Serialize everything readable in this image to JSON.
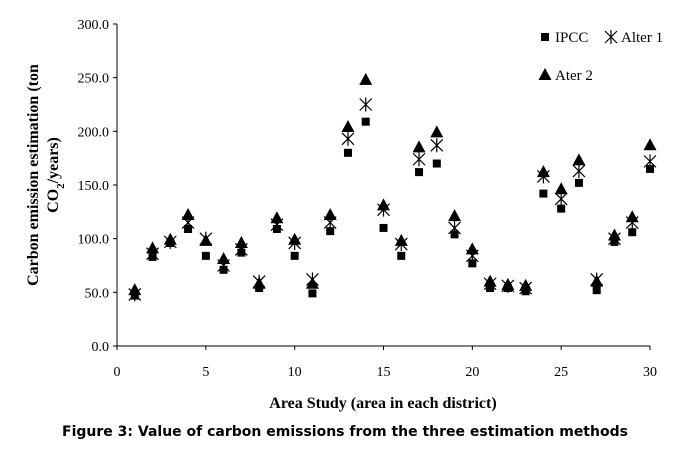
{
  "chart_data": {
    "type": "scatter",
    "title": "",
    "xlabel": "Area Study (area in each district)",
    "ylabel_line1": "Carbon emission estimation (ton",
    "ylabel_line2_prefix": "CO",
    "ylabel_line2_sub": "2",
    "ylabel_line2_suffix": "/years)",
    "xlim": [
      0,
      30
    ],
    "ylim": [
      0,
      300
    ],
    "x_ticks": [
      "0",
      "5",
      "10",
      "15",
      "20",
      "25",
      "30"
    ],
    "y_ticks": [
      "0.0",
      "50.0",
      "100.0",
      "150.0",
      "200.0",
      "250.0",
      "300.0"
    ],
    "grid": false,
    "legend_position": "top-right",
    "x": [
      1,
      2,
      3,
      4,
      5,
      6,
      7,
      8,
      9,
      10,
      11,
      12,
      13,
      14,
      15,
      16,
      17,
      18,
      19,
      20,
      21,
      22,
      23,
      24,
      25,
      26,
      27,
      28,
      29,
      30
    ],
    "series": [
      {
        "name": "IPCC",
        "marker": "square",
        "color": "#000000",
        "values": [
          47,
          83,
          96,
          109,
          84,
          71,
          87,
          54,
          109,
          84,
          49,
          107,
          180,
          209,
          110,
          84,
          162,
          170,
          104,
          77,
          54,
          54,
          51,
          142,
          128,
          152,
          52,
          97,
          106,
          165
        ]
      },
      {
        "name": "Alter 1",
        "marker": "asterisk",
        "color": "#000000",
        "values": [
          48,
          86,
          97,
          115,
          100,
          75,
          90,
          60,
          113,
          96,
          62,
          115,
          193,
          225,
          127,
          95,
          174,
          187,
          110,
          84,
          58,
          56,
          54,
          158,
          137,
          163,
          62,
          100,
          115,
          172
        ]
      },
      {
        "name": "Ater 2",
        "marker": "triangle",
        "color": "#000000",
        "values": [
          52,
          91,
          99,
          122,
          98,
          81,
          96,
          58,
          119,
          99,
          58,
          122,
          204,
          248,
          131,
          98,
          185,
          199,
          121,
          90,
          60,
          57,
          56,
          162,
          146,
          173,
          60,
          103,
          120,
          187
        ]
      }
    ]
  },
  "caption": "Figure 3: Value of carbon emissions from the three estimation methods"
}
